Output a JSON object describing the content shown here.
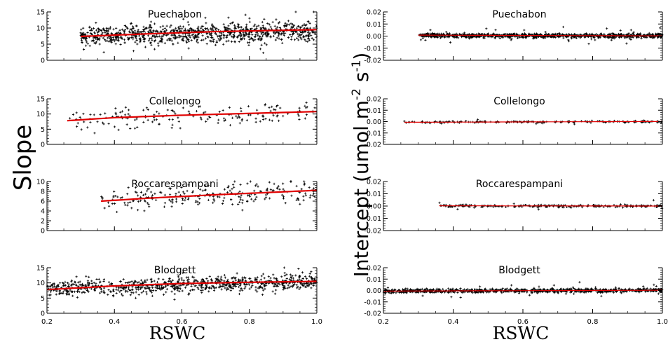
{
  "figure": {
    "slope_label": "Slope",
    "intercept_label": "Intercept (umol m-2 s-1)",
    "intercept_label_parts": [
      "Intercept (umol m",
      "-2",
      " s",
      "-1",
      ")"
    ],
    "x_title_left": "RSWC",
    "x_title_right": "RSWC"
  },
  "chart_data": [
    {
      "type": "scatter",
      "panel": "slope",
      "site_index": 0,
      "title": "Puechabon",
      "xlim": [
        0.2,
        1.0
      ],
      "ylim": [
        0,
        15
      ],
      "yticks": [
        "0",
        "5",
        "10",
        "15"
      ],
      "xticks": [],
      "minor_y": 5,
      "x_range": [
        0.3,
        1.0
      ],
      "n_points": 900,
      "scatter_mode": "slope",
      "fit": {
        "x": [
          0.3,
          0.5,
          0.7,
          0.9,
          1.0
        ],
        "y": [
          7.4,
          8.2,
          8.9,
          9.3,
          9.5
        ]
      },
      "y_mean": [
        7.5,
        9.0
      ],
      "y_spread": 2.6
    },
    {
      "type": "scatter",
      "panel": "slope",
      "site_index": 1,
      "title": "Collelongo",
      "xlim": [
        0.2,
        1.0
      ],
      "ylim": [
        0,
        15
      ],
      "yticks": [
        "0",
        "5",
        "10",
        "15"
      ],
      "xticks": [],
      "minor_y": 5,
      "x_range": [
        0.26,
        1.0
      ],
      "n_points": 170,
      "scatter_mode": "slope",
      "fit": {
        "x": [
          0.26,
          0.4,
          0.6,
          0.8,
          1.0
        ],
        "y": [
          7.8,
          8.8,
          9.6,
          10.2,
          10.8
        ]
      },
      "y_mean": [
        7.8,
        10.5
      ],
      "y_spread": 2.8
    },
    {
      "type": "scatter",
      "panel": "slope",
      "site_index": 2,
      "title": "Roccarespampani",
      "xlim": [
        0.2,
        1.0
      ],
      "ylim": [
        0,
        10
      ],
      "yticks": [
        "0",
        "2",
        "4",
        "6",
        "8",
        "10"
      ],
      "xticks": [],
      "minor_y": 2,
      "x_range": [
        0.36,
        1.0
      ],
      "n_points": 230,
      "scatter_mode": "slope",
      "fit": {
        "x": [
          0.36,
          0.5,
          0.7,
          0.9,
          1.0
        ],
        "y": [
          6.0,
          6.6,
          7.3,
          7.9,
          8.2
        ]
      },
      "y_mean": [
        6.2,
        8.0
      ],
      "y_spread": 1.8
    },
    {
      "type": "scatter",
      "panel": "slope",
      "site_index": 3,
      "title": "Blodgett",
      "xlim": [
        0.2,
        1.0
      ],
      "ylim": [
        0,
        15
      ],
      "yticks": [
        "0",
        "5",
        "10",
        "15"
      ],
      "xticks": [
        "0.2",
        "0.4",
        "0.6",
        "0.8",
        "1.0"
      ],
      "minor_y": 5,
      "x_range": [
        0.2,
        1.0
      ],
      "n_points": 800,
      "scatter_mode": "slope",
      "fit": {
        "x": [
          0.2,
          0.4,
          0.6,
          0.8,
          1.0
        ],
        "y": [
          7.8,
          9.0,
          9.8,
          10.2,
          10.5
        ]
      },
      "y_mean": [
        8.0,
        10.5
      ],
      "y_spread": 2.0
    },
    {
      "type": "scatter",
      "panel": "intercept",
      "site_index": 0,
      "title": "Puechabon",
      "xlim": [
        0.2,
        1.0
      ],
      "ylim": [
        -0.02,
        0.02
      ],
      "yticks": [
        "-0.02",
        "-0.01",
        "0.00",
        "0.01",
        "0.02"
      ],
      "xticks": [],
      "minor_y": 0.01,
      "x_range": [
        0.3,
        1.0
      ],
      "n_points": 900,
      "scatter_mode": "intercept",
      "fit": {
        "x": [
          0.3,
          1.0
        ],
        "y": [
          0.0008,
          0.0002
        ]
      },
      "y_mean": [
        0.0005,
        0.0002
      ],
      "y_spread": 0.0015
    },
    {
      "type": "scatter",
      "panel": "intercept",
      "site_index": 1,
      "title": "Collelongo",
      "xlim": [
        0.2,
        1.0
      ],
      "ylim": [
        -0.02,
        0.02
      ],
      "yticks": [
        "-0.02",
        "-0.01",
        "0.00",
        "0.01",
        "0.02"
      ],
      "xticks": [],
      "minor_y": 0.01,
      "x_range": [
        0.26,
        1.0
      ],
      "n_points": 170,
      "scatter_mode": "intercept",
      "fit": {
        "x": [
          0.26,
          1.0
        ],
        "y": [
          -0.0006,
          0.0001
        ]
      },
      "y_mean": [
        -0.0005,
        0.0
      ],
      "y_spread": 0.0008
    },
    {
      "type": "scatter",
      "panel": "intercept",
      "site_index": 2,
      "title": "Roccarespampani",
      "xlim": [
        0.2,
        1.0
      ],
      "ylim": [
        -0.02,
        0.02
      ],
      "yticks": [
        "-0.02",
        "-0.01",
        "0.00",
        "0.01",
        "0.02"
      ],
      "xticks": [],
      "minor_y": 0.01,
      "x_range": [
        0.36,
        1.0
      ],
      "n_points": 230,
      "scatter_mode": "intercept",
      "fit": {
        "x": [
          0.36,
          1.0
        ],
        "y": [
          0.0002,
          0.0
        ]
      },
      "y_mean": [
        0.0,
        0.0
      ],
      "y_spread": 0.001
    },
    {
      "type": "scatter",
      "panel": "intercept",
      "site_index": 3,
      "title": "Blodgett",
      "xlim": [
        0.2,
        1.0
      ],
      "ylim": [
        -0.02,
        0.02
      ],
      "yticks": [
        "-0.02",
        "-0.01",
        "0.00",
        "0.01",
        "0.02"
      ],
      "xticks": [
        "0.2",
        "0.4",
        "0.6",
        "0.8",
        "1.0"
      ],
      "minor_y": 0.01,
      "x_range": [
        0.2,
        1.0
      ],
      "n_points": 800,
      "scatter_mode": "intercept",
      "fit": {
        "x": [
          0.2,
          1.0
        ],
        "y": [
          -0.0005,
          0.0002
        ]
      },
      "y_mean": [
        -0.0005,
        0.0002
      ],
      "y_spread": 0.0015
    }
  ],
  "colors": {
    "fit_line": "#e00000",
    "points": "#000000",
    "axes": "#000000"
  }
}
